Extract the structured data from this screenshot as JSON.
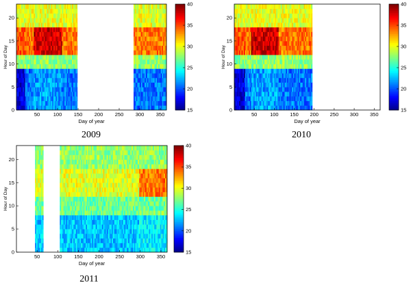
{
  "chart_data": [
    {
      "type": "heatmap",
      "caption": "2009",
      "xlabel": "Day of year",
      "ylabel": "Hour of Day",
      "xlim": [
        0,
        365
      ],
      "ylim": [
        0,
        23
      ],
      "xticks": [
        "50",
        "100",
        "150",
        "200",
        "250",
        "300",
        "350"
      ],
      "yticks": [
        "0",
        "5",
        "10",
        "15",
        "20"
      ],
      "colorbar": {
        "min": 15,
        "max": 40,
        "ticks": [
          "40",
          "35",
          "30",
          "25",
          "20",
          "15"
        ]
      },
      "data_ranges": [
        [
          0,
          148
        ],
        [
          285,
          365
        ]
      ],
      "hour_profile": [
        {
          "hours": [
            0,
            9
          ],
          "value": 21
        },
        {
          "hours": [
            9,
            12
          ],
          "value": 28
        },
        {
          "hours": [
            12,
            18
          ],
          "value": 35
        },
        {
          "hours": [
            18,
            23
          ],
          "value": 30
        }
      ],
      "warm_season": [
        40,
        110
      ],
      "cool_season": [
        0,
        20
      ]
    },
    {
      "type": "heatmap",
      "caption": "2010",
      "xlabel": "Day of year",
      "ylabel": "Hour of Day",
      "xlim": [
        0,
        365
      ],
      "ylim": [
        0,
        23
      ],
      "xticks": [
        "50",
        "100",
        "150",
        "200",
        "250",
        "300",
        "350"
      ],
      "yticks": [
        "0",
        "5",
        "10",
        "15",
        "20"
      ],
      "colorbar": {
        "min": 15,
        "max": 40,
        "ticks": [
          "40",
          "35",
          "30",
          "25",
          "20",
          "15"
        ]
      },
      "data_ranges": [
        [
          0,
          195
        ]
      ],
      "hour_profile": [
        {
          "hours": [
            0,
            9
          ],
          "value": 21
        },
        {
          "hours": [
            9,
            12
          ],
          "value": 28
        },
        {
          "hours": [
            12,
            18
          ],
          "value": 35
        },
        {
          "hours": [
            18,
            23
          ],
          "value": 30
        }
      ],
      "warm_season": [
        40,
        110
      ],
      "cool_season": [
        0,
        25
      ]
    },
    {
      "type": "heatmap",
      "caption": "2011",
      "xlabel": "Day of year",
      "ylabel": "Hour of Day",
      "xlim": [
        0,
        365
      ],
      "ylim": [
        0,
        23
      ],
      "xticks": [
        "50",
        "100",
        "150",
        "200",
        "250",
        "300",
        "350"
      ],
      "yticks": [
        "0",
        "5",
        "10",
        "15",
        "20"
      ],
      "colorbar": {
        "min": 15,
        "max": 40,
        "ticks": [
          "40",
          "35",
          "30",
          "25",
          "20",
          "15"
        ]
      },
      "data_ranges": [
        [
          45,
          65
        ],
        [
          105,
          365
        ]
      ],
      "hour_profile": [
        {
          "hours": [
            0,
            8
          ],
          "value": 23
        },
        {
          "hours": [
            8,
            12
          ],
          "value": 27
        },
        {
          "hours": [
            12,
            18
          ],
          "value": 31
        },
        {
          "hours": [
            18,
            23
          ],
          "value": 28
        }
      ],
      "warm_season": [
        295,
        365
      ],
      "cool_season": [
        0,
        0
      ]
    }
  ]
}
